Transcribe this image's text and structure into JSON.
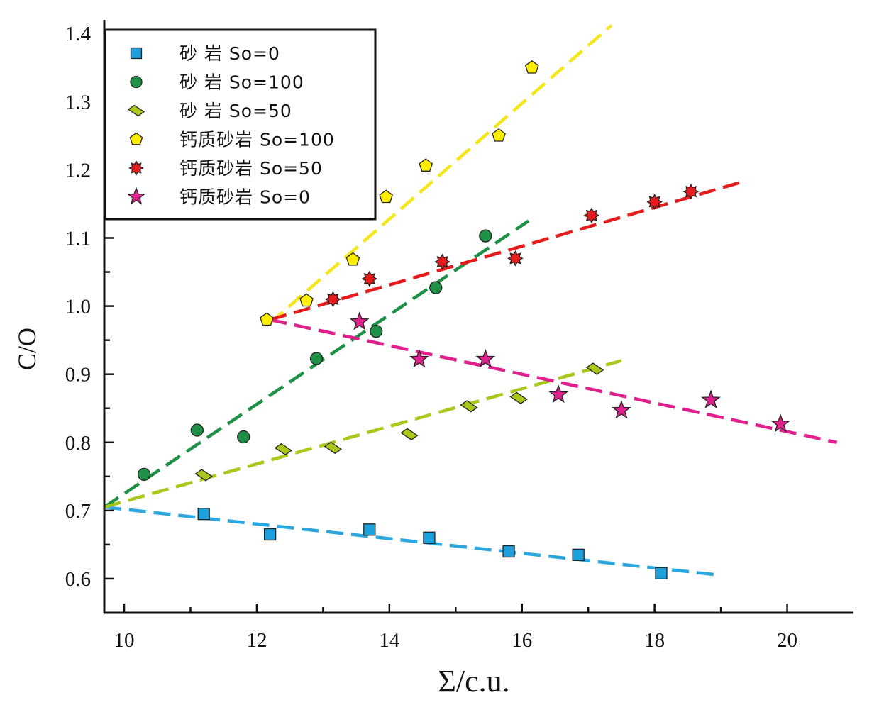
{
  "chart_data": {
    "type": "scatter",
    "xlabel": "Σ/c.u.",
    "ylabel": "C/O",
    "xlim": [
      9.7,
      21.0
    ],
    "ylim": [
      0.55,
      1.42
    ],
    "x_ticks": [
      10,
      12,
      14,
      16,
      18,
      20
    ],
    "y_ticks": [
      0.6,
      0.7,
      0.8,
      0.9,
      1.0,
      1.1,
      1.2,
      1.3,
      1.4
    ],
    "x_tick_labels": [
      "10",
      "12",
      "14",
      "16",
      "18",
      "20"
    ],
    "y_tick_labels": [
      "0.6",
      "0.7",
      "0.8",
      "0.9",
      "1.0",
      "1.1",
      "1.2",
      "1.3",
      "1.4"
    ],
    "grid": false,
    "legend_position": "top-left",
    "series": [
      {
        "name": "砂 岩  So=0",
        "marker": "square",
        "color": "#1ea0dc",
        "points": [
          [
            11.2,
            0.695
          ],
          [
            12.2,
            0.665
          ],
          [
            13.7,
            0.672
          ],
          [
            14.6,
            0.66
          ],
          [
            15.8,
            0.64
          ],
          [
            16.85,
            0.635
          ],
          [
            18.1,
            0.608
          ]
        ],
        "fit": {
          "color": "#2aa7df",
          "from": [
            9.7,
            0.705
          ],
          "to": [
            19.0,
            0.605
          ]
        }
      },
      {
        "name": "砂 岩  So=100",
        "marker": "circle",
        "color": "#1e9146",
        "points": [
          [
            10.3,
            0.753
          ],
          [
            11.1,
            0.818
          ],
          [
            11.8,
            0.808
          ],
          [
            12.9,
            0.923
          ],
          [
            13.8,
            0.963
          ],
          [
            14.7,
            1.027
          ],
          [
            15.45,
            1.103
          ]
        ],
        "fit": {
          "color": "#1e9146",
          "from": [
            9.7,
            0.705
          ],
          "to": [
            16.1,
            1.125
          ]
        }
      },
      {
        "name": "砂 岩  So=50",
        "marker": "diamond",
        "color": "#a8c81c",
        "points": [
          [
            11.2,
            0.752
          ],
          [
            12.4,
            0.79
          ],
          [
            13.15,
            0.792
          ],
          [
            14.3,
            0.812
          ],
          [
            15.2,
            0.853
          ],
          [
            15.95,
            0.865
          ],
          [
            17.1,
            0.908
          ]
        ],
        "fit": {
          "color": "#a8c81c",
          "from": [
            9.7,
            0.705
          ],
          "to": [
            17.5,
            0.92
          ]
        }
      },
      {
        "name": "钙质砂岩 So=100",
        "marker": "pentagon",
        "color": "#ffee00",
        "points": [
          [
            12.15,
            0.98
          ],
          [
            12.75,
            1.008
          ],
          [
            13.45,
            1.068
          ],
          [
            13.95,
            1.16
          ],
          [
            14.55,
            1.206
          ],
          [
            15.65,
            1.25
          ],
          [
            16.15,
            1.35
          ]
        ],
        "fit": {
          "color": "#f5e61a",
          "from": [
            12.2,
            0.975
          ],
          "to": [
            17.35,
            1.412
          ]
        }
      },
      {
        "name": "钙质砂岩 So=50",
        "marker": "burst",
        "color": "#e41c1c",
        "points": [
          [
            13.15,
            1.01
          ],
          [
            13.7,
            1.04
          ],
          [
            14.8,
            1.065
          ],
          [
            15.9,
            1.07
          ],
          [
            17.05,
            1.133
          ],
          [
            18.0,
            1.153
          ],
          [
            18.55,
            1.168
          ]
        ],
        "fit": {
          "color": "#e41c1c",
          "from": [
            12.2,
            0.98
          ],
          "to": [
            19.35,
            1.183
          ]
        }
      },
      {
        "name": "钙质砂岩 So=0",
        "marker": "star",
        "color": "#e0208c",
        "points": [
          [
            13.55,
            0.977
          ],
          [
            14.45,
            0.922
          ],
          [
            15.45,
            0.922
          ],
          [
            16.55,
            0.87
          ],
          [
            17.5,
            0.847
          ],
          [
            18.85,
            0.862
          ],
          [
            19.9,
            0.827
          ]
        ],
        "fit": {
          "color": "#e0208c",
          "from": [
            12.2,
            0.98
          ],
          "to": [
            20.75,
            0.8
          ]
        }
      }
    ]
  }
}
